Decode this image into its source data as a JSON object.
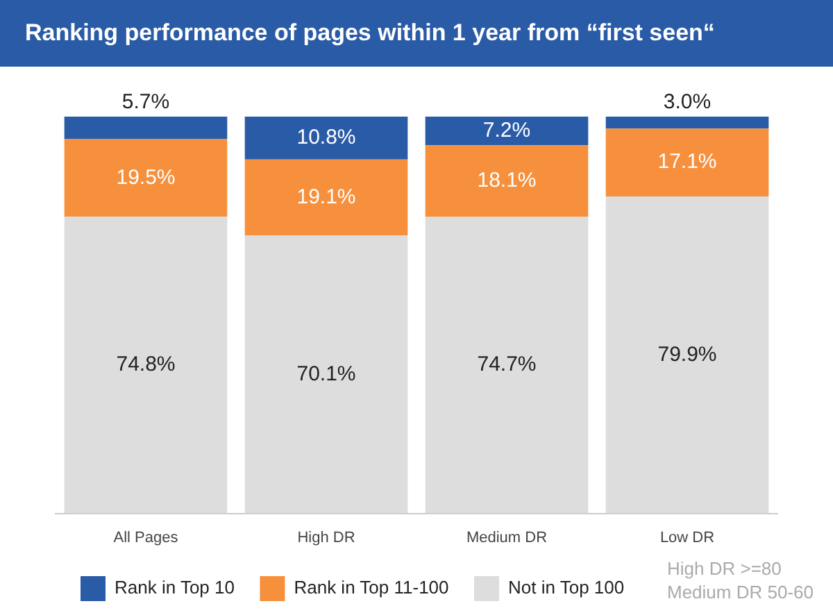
{
  "chart_data": {
    "type": "bar",
    "title": "Ranking performance of pages within 1 year from “first seen“",
    "stacked": true,
    "legend": "bottom",
    "grid": false,
    "tick_labels": "x",
    "categories": [
      "All Pages",
      "High DR",
      "Medium DR",
      "Low DR"
    ],
    "series": [
      {
        "name": "Not in Top 100",
        "color": "#dddddd",
        "values": [
          74.8,
          70.1,
          74.7,
          79.9
        ],
        "value_labels": [
          "74.8%",
          "70.1%",
          "74.7%",
          "79.9%"
        ]
      },
      {
        "name": "Rank in Top 11-100",
        "color": "#f6903d",
        "values": [
          19.5,
          19.1,
          18.1,
          17.1
        ],
        "value_labels": [
          "19.5%",
          "19.1%",
          "18.1%",
          "17.1%"
        ]
      },
      {
        "name": "Rank in Top 10",
        "color": "#2a5ba7",
        "values": [
          5.7,
          10.8,
          7.2,
          3.0
        ],
        "value_labels": [
          "5.7%",
          "10.8%",
          "7.2%",
          "3.0%"
        ]
      }
    ],
    "annotations": [
      "High DR >=80",
      "Medium DR 50-60"
    ]
  }
}
